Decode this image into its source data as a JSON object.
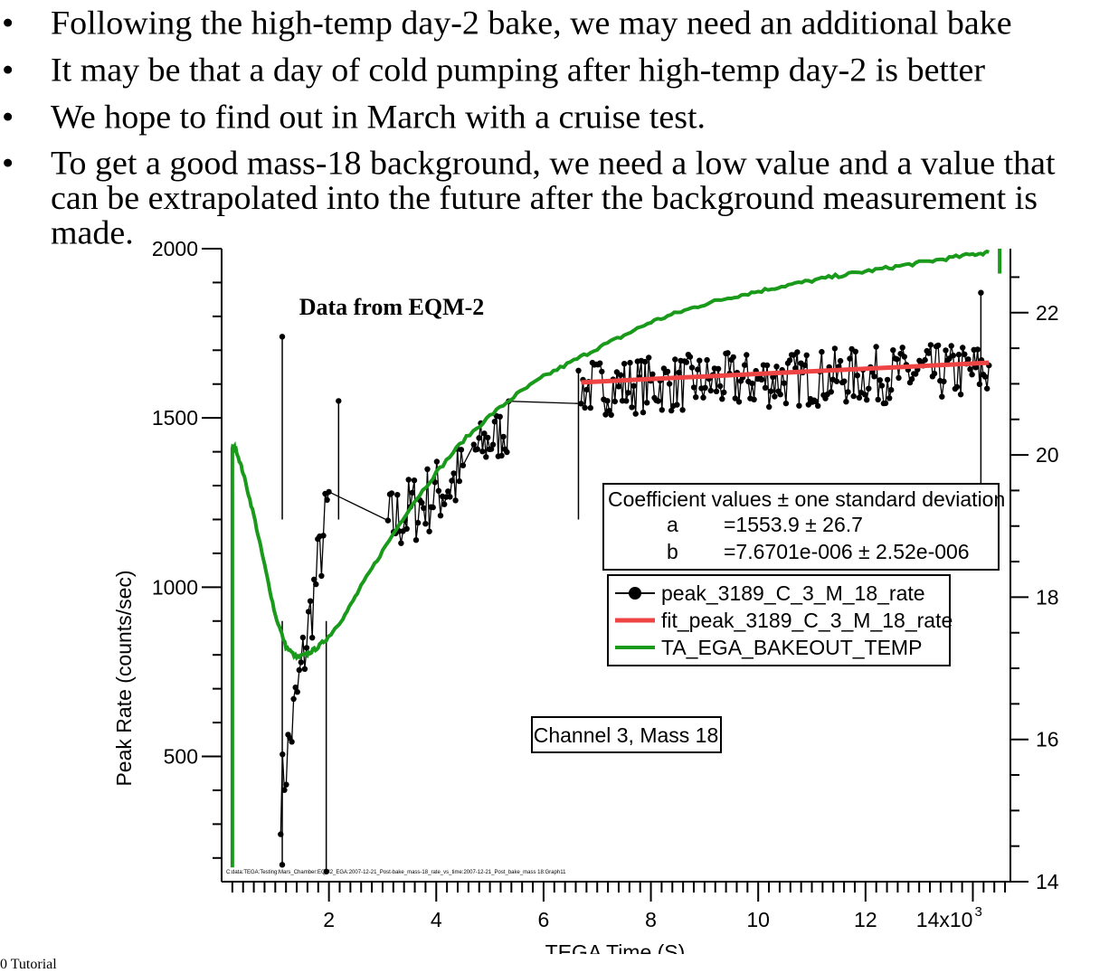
{
  "bullets": [
    "Following the high-temp day-2 bake, we may need an additional bake",
    "It may be that a day of cold pumping after high-temp day-2 is better",
    "We hope to find out in March with a cruise test.",
    "To get a good mass-18 background, we need a low value and a value that can be extrapolated into the future after the background measurement is made."
  ],
  "bullet_symbol": "•",
  "footer_fragment": "0 Tutorial",
  "chart_data": {
    "type": "line",
    "annotation_title": "Data from EQM-2",
    "channel_label": "Channel 3, Mass 18",
    "path_label": "C:data:TEGA:Testing:Mars_Chamber:EQM2_EGA:2007-12-21_Post-bake_mass-18_rate_vs_time:2007-12-21_Post_bake_mass 18:Graph11",
    "xlabel": "TEGA Time (S)",
    "ylabel": "Peak Rate (counts/sec)",
    "x_ticks": [
      "2",
      "4",
      "6",
      "8",
      "10",
      "12",
      "14x10"
    ],
    "x_exponent": "3",
    "y_left_ticks": [
      "500",
      "1000",
      "1500",
      "2000"
    ],
    "y_right_ticks": [
      "14",
      "16",
      "18",
      "20",
      "22"
    ],
    "xlim": [
      0,
      14700
    ],
    "ylim_left": [
      130,
      2000
    ],
    "ylim_right": [
      14,
      22.9
    ],
    "grid": false,
    "coefficients": {
      "header": "Coefficient values ± one standard deviation",
      "rows": [
        {
          "name": "a",
          "value": "=1553.9 ± 26.7"
        },
        {
          "name": "b",
          "value": "=7.6701e-006 ± 2.52e-006"
        }
      ]
    },
    "legend": [
      {
        "name": "peak_3189_C_3_M_18_rate",
        "color": "#000000",
        "marker": "circle"
      },
      {
        "name": "fit_peak_3189_C_3_M_18_rate",
        "color": "#ee4444",
        "marker": "none"
      },
      {
        "name": "TA_EGA_BAKEOUT_TEMP",
        "color": "#1a9a1a",
        "marker": "none"
      }
    ],
    "series": [
      {
        "name": "peak_3189_C_3_M_18_rate",
        "color": "#000000",
        "clusters": [
          {
            "x_start": 1100,
            "x_end": 2000,
            "y_start": 380,
            "y_end": 1250,
            "noise": 110
          },
          {
            "x_start": 3100,
            "x_end": 4500,
            "y_start": 1180,
            "y_end": 1330,
            "noise": 110
          },
          {
            "x_start": 4700,
            "x_end": 5350,
            "y_start": 1400,
            "y_end": 1470,
            "noise": 80
          },
          {
            "x_start": 6700,
            "x_end": 14300,
            "y_start": 1590,
            "y_end": 1640,
            "noise": 85
          }
        ],
        "spikes": [
          {
            "x": 1130,
            "y": 1740
          },
          {
            "x": 1130,
            "y": 180
          },
          {
            "x": 1950,
            "y": 160
          },
          {
            "x": 2180,
            "y": 1550
          },
          {
            "x": 6650,
            "y": 1640
          },
          {
            "x": 14150,
            "y": 1870
          }
        ]
      },
      {
        "name": "fit_peak_3189_C_3_M_18_rate",
        "color": "#ee4444",
        "x": [
          6700,
          14300
        ],
        "y": [
          1605,
          1663
        ]
      },
      {
        "name": "TA_EGA_BAKEOUT_TEMP",
        "color": "#1a9a1a",
        "axis": "right",
        "x": [
          200,
          260,
          400,
          600,
          800,
          1000,
          1200,
          1400,
          1600,
          1800,
          2000,
          2300,
          2600,
          3000,
          3500,
          4000,
          4500,
          5000,
          5500,
          6000,
          6500,
          7000,
          7500,
          8000,
          8500,
          9000,
          9500,
          10000,
          10500,
          11000,
          11500,
          12000,
          12500,
          13000,
          13500,
          14000,
          14300
        ],
        "y": [
          20.1,
          20.1,
          19.75,
          19.15,
          18.45,
          17.75,
          17.3,
          17.15,
          17.2,
          17.3,
          17.45,
          17.75,
          18.15,
          18.65,
          19.25,
          19.75,
          20.2,
          20.55,
          20.85,
          21.1,
          21.3,
          21.5,
          21.68,
          21.87,
          22.0,
          22.12,
          22.22,
          22.3,
          22.38,
          22.45,
          22.52,
          22.58,
          22.64,
          22.7,
          22.76,
          22.82,
          22.85
        ],
        "extras": [
          {
            "x": 200,
            "y0": 14.2,
            "y1": 20.1
          },
          {
            "x": 14500,
            "y0": 22.9,
            "y1": 22.55
          }
        ]
      }
    ]
  }
}
